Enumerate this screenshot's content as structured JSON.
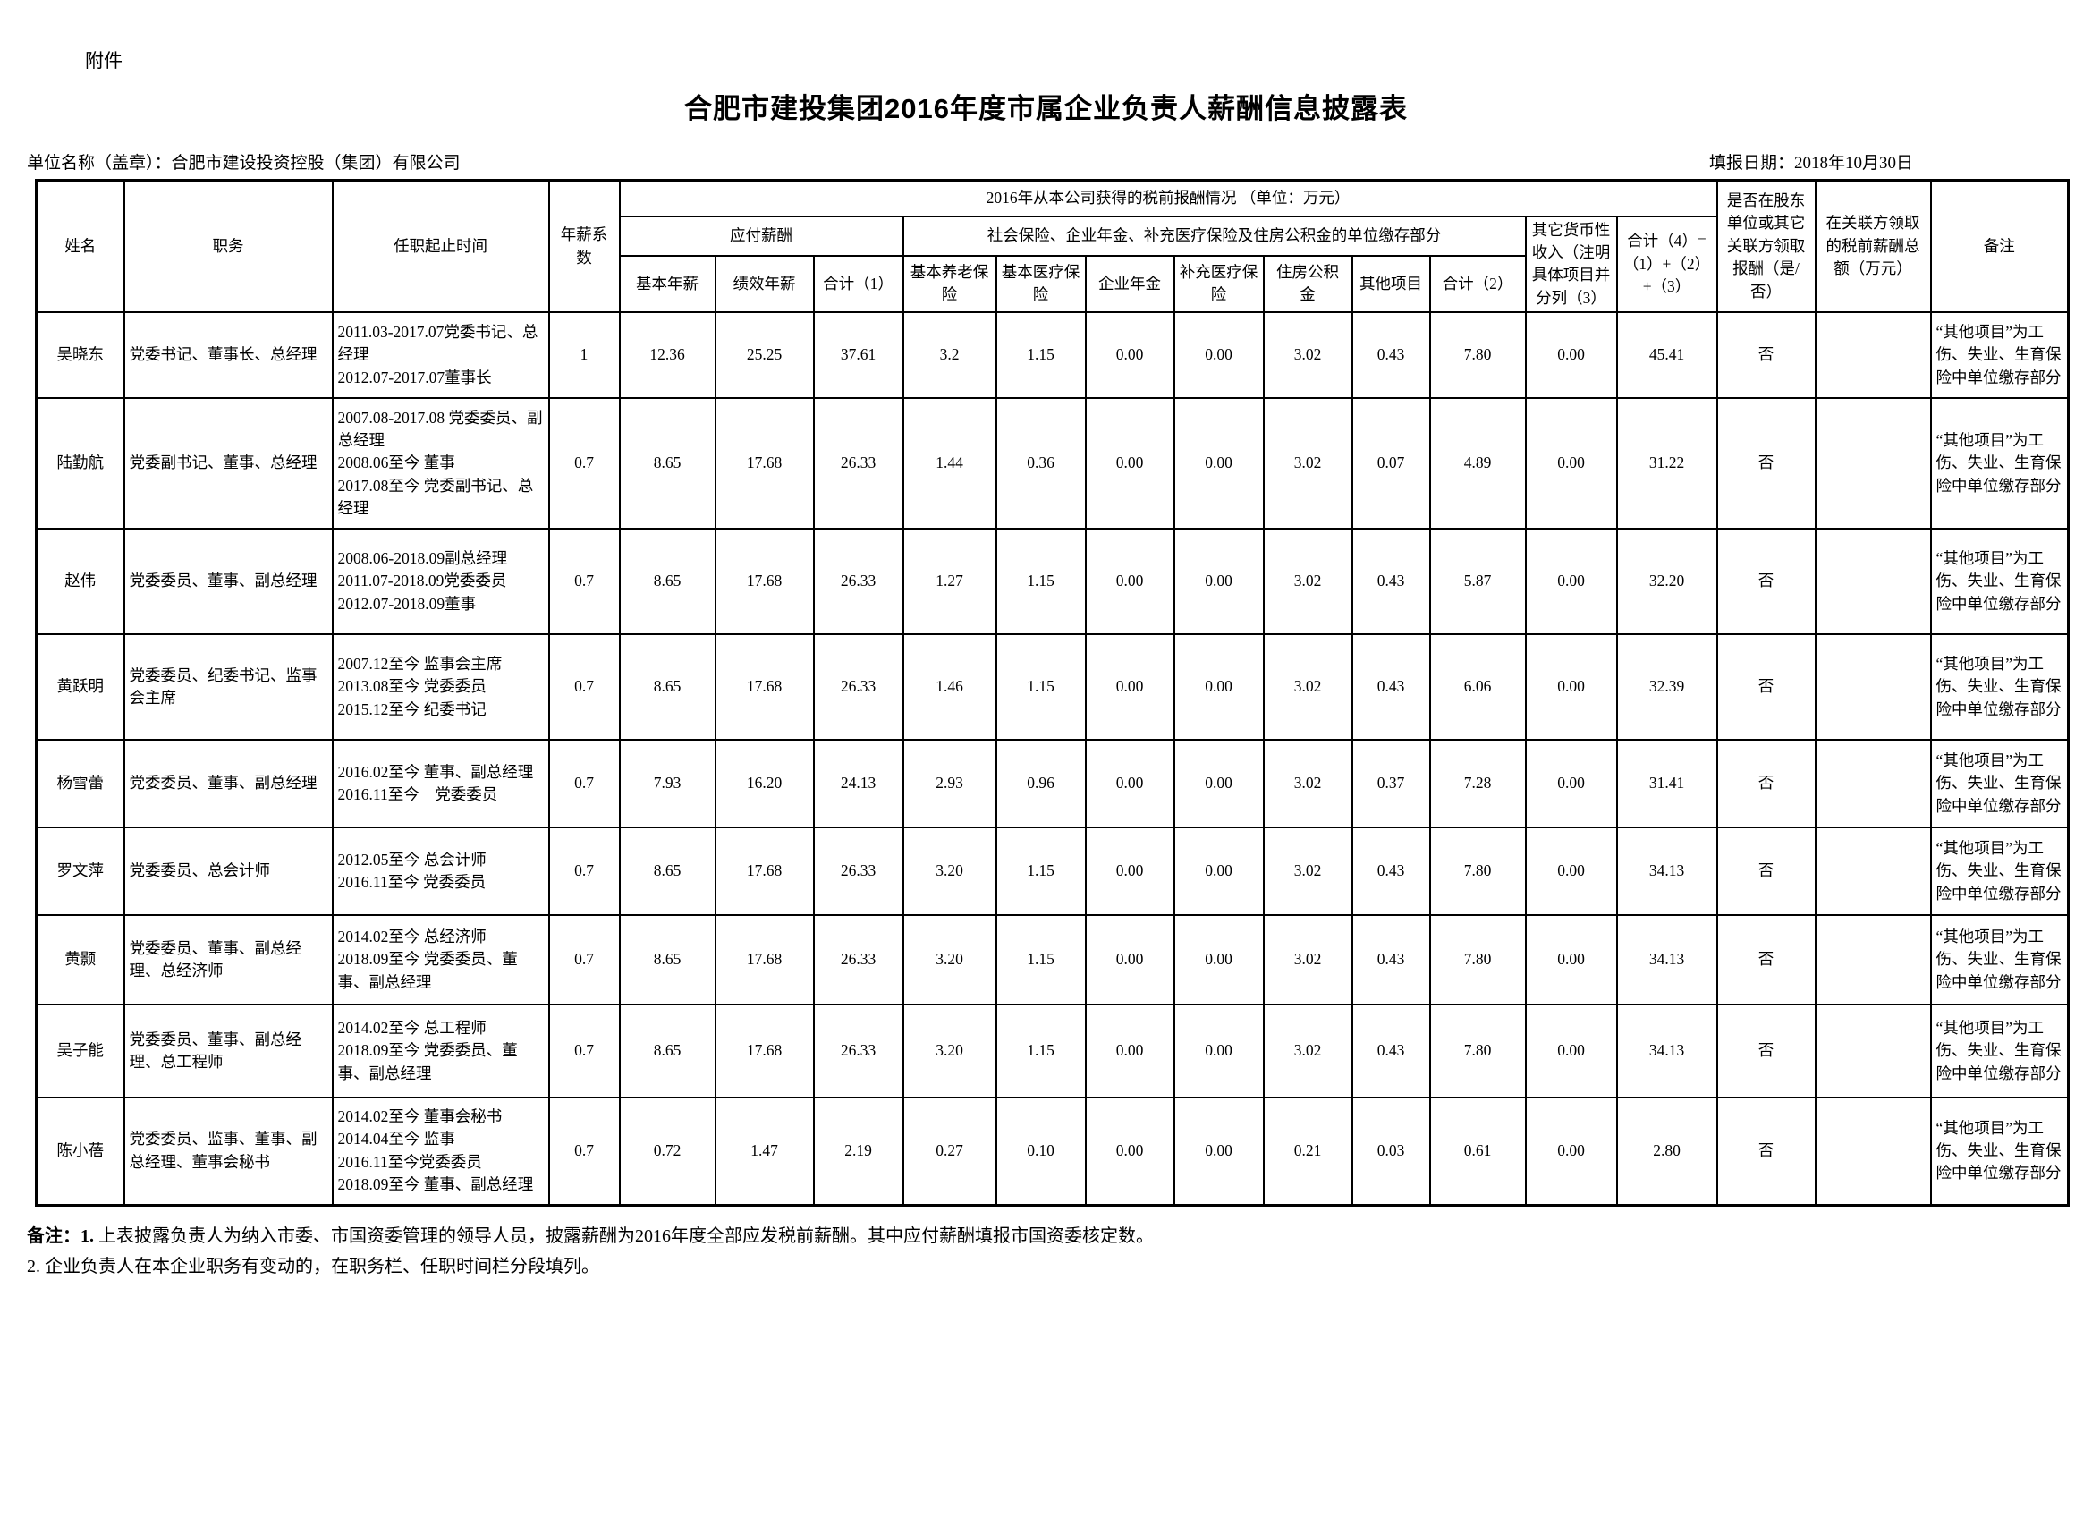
{
  "page": {
    "attachment_label": "附件",
    "title": "合肥市建投集团2016年度市属企业负责人薪酬信息披露表",
    "unit_line": "单位名称（盖章）：合肥市建设投资控股（集团）有限公司",
    "date_line": "填报日期：2018年10月30日"
  },
  "table": {
    "headers": {
      "name": "姓名",
      "position": "职务",
      "tenure": "任职起止时间",
      "salary_coefficient": "年薪系数",
      "pretax_group": "2016年从本公司获得的税前报酬情况 （单位：万元）",
      "payable_group": "应付薪酬",
      "insurance_group": "社会保险、企业年金、补充医疗保险及住房公积金的单位缴存部分",
      "base_salary": "基本年薪",
      "performance_salary": "绩效年薪",
      "subtotal1": "合计（1）",
      "pension": "基本养老保险",
      "medical": "基本医疗保险",
      "annuity": "企业年金",
      "supp_medical": "补充医疗保险",
      "housing_fund": "住房公积金",
      "other_items": "其他项目",
      "subtotal2": "合计（2）",
      "other_monetary": "其它货币性收入（注明具体项目并分列（3）",
      "total4": "合计（4）=（1）+（2）+（3）",
      "related_party_yn": "是否在股东单位或其它关联方领取报酬（是/否）",
      "related_party_amount": "在关联方领取的税前薪酬总额（万元）",
      "remark": "备注"
    },
    "rows": [
      {
        "name": "吴晓东",
        "position": "党委书记、董事长、总经理",
        "tenure": "2011.03-2017.07党委书记、总经理\n2012.07-2017.07董事长",
        "coefficient": "1",
        "values": [
          "12.36",
          "25.25",
          "37.61",
          "3.2",
          "1.15",
          "0.00",
          "0.00",
          "3.02",
          "0.43",
          "7.80",
          "0.00",
          "45.41"
        ],
        "related_yn": "否",
        "related_amount": "",
        "remark": "“其他项目”为工伤、失业、生育保险中单位缴存部分"
      },
      {
        "name": "陆勤航",
        "position": "党委副书记、董事、总经理",
        "tenure": "2007.08-2017.08 党委委员、副总经理\n2008.06至今 董事\n2017.08至今 党委副书记、总经理",
        "coefficient": "0.7",
        "values": [
          "8.65",
          "17.68",
          "26.33",
          "1.44",
          "0.36",
          "0.00",
          "0.00",
          "3.02",
          "0.07",
          "4.89",
          "0.00",
          "31.22"
        ],
        "related_yn": "否",
        "related_amount": "",
        "remark": "“其他项目”为工伤、失业、生育保险中单位缴存部分"
      },
      {
        "name": "赵伟",
        "position": "党委委员、董事、副总经理",
        "tenure": "2008.06-2018.09副总经理\n2011.07-2018.09党委委员\n2012.07-2018.09董事",
        "coefficient": "0.7",
        "values": [
          "8.65",
          "17.68",
          "26.33",
          "1.27",
          "1.15",
          "0.00",
          "0.00",
          "3.02",
          "0.43",
          "5.87",
          "0.00",
          "32.20"
        ],
        "related_yn": "否",
        "related_amount": "",
        "remark": "“其他项目”为工伤、失业、生育保险中单位缴存部分"
      },
      {
        "name": "黄跃明",
        "position": "党委委员、纪委书记、监事会主席",
        "tenure": "2007.12至今 监事会主席\n2013.08至今 党委委员\n2015.12至今 纪委书记",
        "coefficient": "0.7",
        "values": [
          "8.65",
          "17.68",
          "26.33",
          "1.46",
          "1.15",
          "0.00",
          "0.00",
          "3.02",
          "0.43",
          "6.06",
          "0.00",
          "32.39"
        ],
        "related_yn": "否",
        "related_amount": "",
        "remark": "“其他项目”为工伤、失业、生育保险中单位缴存部分"
      },
      {
        "name": "杨雪蕾",
        "position": "党委委员、董事、副总经理",
        "tenure": "2016.02至今 董事、副总经理\n2016.11至今　党委委员",
        "coefficient": "0.7",
        "values": [
          "7.93",
          "16.20",
          "24.13",
          "2.93",
          "0.96",
          "0.00",
          "0.00",
          "3.02",
          "0.37",
          "7.28",
          "0.00",
          "31.41"
        ],
        "related_yn": "否",
        "related_amount": "",
        "remark": "“其他项目”为工伤、失业、生育保险中单位缴存部分"
      },
      {
        "name": "罗文萍",
        "position": "党委委员、总会计师",
        "tenure": "2012.05至今 总会计师\n2016.11至今 党委委员",
        "coefficient": "0.7",
        "values": [
          "8.65",
          "17.68",
          "26.33",
          "3.20",
          "1.15",
          "0.00",
          "0.00",
          "3.02",
          "0.43",
          "7.80",
          "0.00",
          "34.13"
        ],
        "related_yn": "否",
        "related_amount": "",
        "remark": "“其他项目”为工伤、失业、生育保险中单位缴存部分"
      },
      {
        "name": "黄颢",
        "position": "党委委员、董事、副总经理、总经济师",
        "tenure": "2014.02至今 总经济师\n2018.09至今 党委委员、董事、副总经理",
        "coefficient": "0.7",
        "values": [
          "8.65",
          "17.68",
          "26.33",
          "3.20",
          "1.15",
          "0.00",
          "0.00",
          "3.02",
          "0.43",
          "7.80",
          "0.00",
          "34.13"
        ],
        "related_yn": "否",
        "related_amount": "",
        "remark": "“其他项目”为工伤、失业、生育保险中单位缴存部分"
      },
      {
        "name": "吴子能",
        "position": "党委委员、董事、副总经理、总工程师",
        "tenure": "2014.02至今 总工程师\n2018.09至今 党委委员、董事、副总经理",
        "coefficient": "0.7",
        "values": [
          "8.65",
          "17.68",
          "26.33",
          "3.20",
          "1.15",
          "0.00",
          "0.00",
          "3.02",
          "0.43",
          "7.80",
          "0.00",
          "34.13"
        ],
        "related_yn": "否",
        "related_amount": "",
        "remark": "“其他项目”为工伤、失业、生育保险中单位缴存部分"
      },
      {
        "name": "陈小蓓",
        "position": "党委委员、监事、董事、副总经理、董事会秘书",
        "tenure": "2014.02至今 董事会秘书\n2014.04至今 监事\n2016.11至今党委委员\n2018.09至今 董事、副总经理",
        "coefficient": "0.7",
        "values": [
          "0.72",
          "1.47",
          "2.19",
          "0.27",
          "0.10",
          "0.00",
          "0.00",
          "0.21",
          "0.03",
          "0.61",
          "0.00",
          "2.80"
        ],
        "related_yn": "否",
        "related_amount": "",
        "remark": "“其他项目”为工伤、失业、生育保险中单位缴存部分"
      }
    ]
  },
  "notes": {
    "note1_label": "备注：1.",
    "note1_text": "上表披露负责人为纳入市委、市国资委管理的领导人员，披露薪酬为2016年度全部应发税前薪酬。其中应付薪酬填报市国资委核定数。",
    "note2_text": "2. 企业负责人在本企业职务有变动的，在职务栏、任职时间栏分段填列。"
  }
}
